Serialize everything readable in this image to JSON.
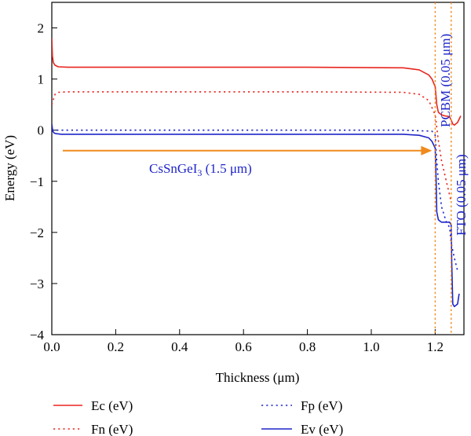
{
  "chart_data": {
    "type": "line",
    "xlabel": "Thickness (μm)",
    "ylabel": "Energy (eV)",
    "xlim": [
      0.0,
      1.29
    ],
    "ylim": [
      -4,
      2.5
    ],
    "xticks": [
      "0.0",
      "0.2",
      "0.4",
      "0.6",
      "0.8",
      "1.0",
      "1.2"
    ],
    "yticks": [
      "2",
      "1",
      "0",
      "−1",
      "−2",
      "−3",
      "−4"
    ],
    "grid": false,
    "legend_position": "bottom",
    "series": [
      {
        "name": "Ec (eV)",
        "color": "#e8261f",
        "dash": "solid",
        "x": [
          0.0,
          0.002,
          0.005,
          0.01,
          0.02,
          0.05,
          0.4,
          0.8,
          1.1,
          1.15,
          1.18,
          1.19,
          1.2,
          1.205,
          1.21,
          1.22,
          1.23,
          1.24,
          1.245,
          1.25,
          1.255,
          1.26,
          1.27,
          1.28
        ],
        "y": [
          1.8,
          1.45,
          1.32,
          1.27,
          1.24,
          1.23,
          1.23,
          1.23,
          1.22,
          1.18,
          1.08,
          1.0,
          0.85,
          0.5,
          0.35,
          0.3,
          0.28,
          0.27,
          0.26,
          0.2,
          0.12,
          0.1,
          0.15,
          0.28
        ]
      },
      {
        "name": "Fn (eV)",
        "color": "#e8261f",
        "dash": "dotted",
        "x": [
          0.0,
          0.01,
          0.02,
          0.05,
          0.4,
          0.8,
          1.1,
          1.15,
          1.18,
          1.2,
          1.205,
          1.21,
          1.22,
          1.235,
          1.25
        ],
        "y": [
          0.5,
          0.7,
          0.74,
          0.75,
          0.75,
          0.75,
          0.74,
          0.7,
          0.58,
          0.3,
          0.05,
          -0.2,
          -0.6,
          -1.0,
          -1.4
        ]
      },
      {
        "name": "Fp (eV)",
        "color": "#1f25c8",
        "dash": "dotted",
        "x": [
          0.0,
          0.4,
          0.8,
          1.1,
          1.19,
          1.2,
          1.205,
          1.21,
          1.22,
          1.235,
          1.245,
          1.25,
          1.26,
          1.27
        ],
        "y": [
          0.0,
          0.0,
          0.0,
          0.0,
          -0.02,
          -0.1,
          -0.6,
          -1.0,
          -1.5,
          -1.8,
          -1.9,
          -2.2,
          -2.5,
          -2.75
        ]
      },
      {
        "name": "Ev (eV)",
        "color": "#1f25c8",
        "dash": "solid",
        "x": [
          0.0,
          0.003,
          0.008,
          0.015,
          0.03,
          0.06,
          0.4,
          0.8,
          1.1,
          1.15,
          1.18,
          1.19,
          1.2,
          1.203,
          1.205,
          1.21,
          1.215,
          1.22,
          1.23,
          1.24,
          1.245,
          1.25,
          1.252,
          1.255,
          1.26,
          1.27,
          1.275
        ],
        "y": [
          0.12,
          -0.02,
          -0.06,
          -0.07,
          -0.08,
          -0.08,
          -0.08,
          -0.08,
          -0.08,
          -0.1,
          -0.15,
          -0.22,
          -0.35,
          -1.0,
          -1.6,
          -1.75,
          -1.78,
          -1.8,
          -1.8,
          -1.8,
          -1.8,
          -1.85,
          -2.6,
          -3.4,
          -3.45,
          -3.4,
          -3.2
        ]
      }
    ],
    "reference_lines": [
      {
        "x": 1.2,
        "color": "#f08a1c"
      },
      {
        "x": 1.25,
        "color": "#f08a1c"
      }
    ],
    "annotations": {
      "main_layer": {
        "base": "CsSnGeI",
        "sub": "3",
        "rest": " (1.5 μm)",
        "color": "#1f25c8"
      },
      "pcbm": {
        "text": "PCBM (0.05 μm)",
        "color": "#1f25c8"
      },
      "fto": {
        "text": "FTO (0.05 μm)",
        "color": "#1f25c8"
      },
      "arrow": {
        "x_start": 0.0,
        "x_end": 1.2,
        "y": -0.4,
        "color": "#f08a1c"
      }
    }
  }
}
